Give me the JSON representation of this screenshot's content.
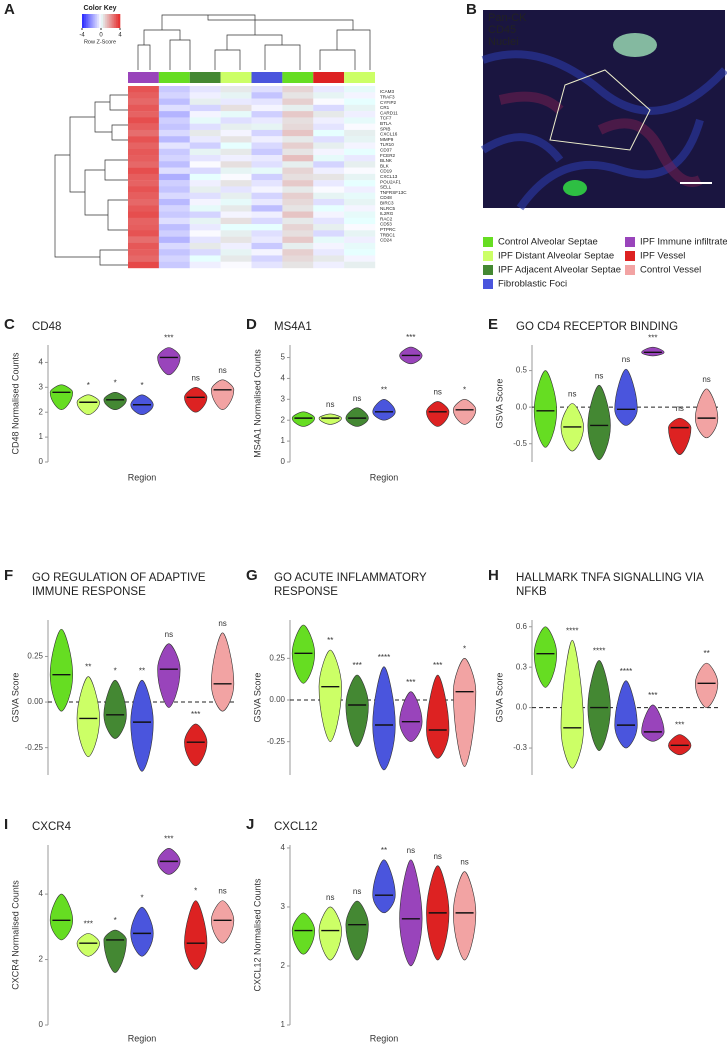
{
  "groups": {
    "names": [
      "Control Alveolar Septae",
      "IPF Distant Alveolar Septae",
      "IPF Adjacent Alveolar Septae",
      "Fibroblastic Foci",
      "IPF Immune infiltrate",
      "IPF Vessel",
      "Control Vessel"
    ],
    "colors": [
      "#66dd22",
      "#ccff66",
      "#448833",
      "#4a55dd",
      "#9944bb",
      "#dd2222",
      "#f2a3a3"
    ]
  },
  "micrograph": {
    "panel_label": "B",
    "channels": [
      "Pan-CK",
      "CD45",
      "Nuclei"
    ],
    "channel_colors": [
      "#a8f0c0",
      "#ff3030",
      "#5566ff"
    ]
  },
  "chart_data": [
    {
      "type": "heatmap",
      "panel_label": "A",
      "color_key": {
        "title": "Color Key",
        "label": "Row Z-Score",
        "lim": [
          -4,
          4
        ],
        "ticks": [
          -4,
          0,
          4
        ]
      },
      "rows": [
        "ICAM3",
        "TRAF3",
        "CYFIP2",
        "CR1",
        "CARD11",
        "TCF7",
        "BTLA",
        "SPIB",
        "CXCL16",
        "MMP9",
        "TLR10",
        "CD37",
        "FCER2",
        "BLNK",
        "BLK",
        "CD19",
        "CXCL13",
        "POU2AF1",
        "SELL",
        "TNFRSF13C",
        "CD48",
        "BIRC3",
        "NLRC5",
        "IL2RG",
        "RAC2",
        "CD53",
        "PTPRC",
        "TRBC1",
        "CD24"
      ],
      "column_groups": [
        4,
        0,
        2,
        1,
        3,
        0,
        5,
        1
      ],
      "values": [
        [
          3.2,
          -1.0,
          -0.5,
          0.4,
          -0.6,
          0.8,
          -0.4,
          0.1
        ],
        [
          3.0,
          -0.8,
          -0.3,
          0.2,
          -1.1,
          0.5,
          0.2,
          -0.2
        ],
        [
          2.8,
          -1.2,
          0.3,
          -0.4,
          -0.5,
          0.9,
          -0.1,
          0.0
        ],
        [
          3.1,
          -0.6,
          -0.8,
          0.6,
          -0.2,
          0.3,
          -0.7,
          0.2
        ],
        [
          2.9,
          -1.4,
          -0.2,
          0.1,
          -0.9,
          1.0,
          0.4,
          -0.3
        ],
        [
          3.3,
          -0.9,
          0.1,
          -0.6,
          -0.4,
          0.6,
          -0.3,
          0.1
        ],
        [
          3.0,
          -1.1,
          -0.6,
          0.3,
          0.2,
          0.7,
          -0.5,
          -0.1
        ],
        [
          2.7,
          -0.7,
          0.4,
          -0.2,
          -0.8,
          1.1,
          0.0,
          0.3
        ],
        [
          3.2,
          -1.3,
          -0.4,
          0.5,
          -0.3,
          0.4,
          -0.6,
          0.2
        ],
        [
          2.9,
          -0.5,
          -0.9,
          0.0,
          -0.7,
          0.9,
          0.3,
          -0.2
        ],
        [
          3.1,
          -1.0,
          0.2,
          0.4,
          -1.0,
          0.5,
          -0.2,
          0.0
        ],
        [
          3.0,
          -0.8,
          -0.5,
          -0.3,
          -0.4,
          1.2,
          0.1,
          -0.4
        ],
        [
          2.8,
          -1.2,
          -0.1,
          0.6,
          -0.6,
          0.3,
          -0.8,
          0.3
        ],
        [
          3.3,
          -0.6,
          -0.7,
          0.2,
          0.1,
          0.8,
          -0.3,
          -0.1
        ],
        [
          3.0,
          -1.5,
          0.0,
          -0.1,
          -0.9,
          0.6,
          0.5,
          0.2
        ],
        [
          2.9,
          -0.9,
          -0.3,
          0.5,
          -0.5,
          1.0,
          -0.4,
          0.0
        ],
        [
          3.2,
          -1.1,
          0.3,
          -0.5,
          -0.2,
          0.4,
          -0.1,
          -0.3
        ],
        [
          3.0,
          -0.7,
          -0.6,
          0.3,
          -0.8,
          0.9,
          0.2,
          0.1
        ],
        [
          2.8,
          -1.3,
          -0.2,
          0.1,
          -0.4,
          0.7,
          -0.6,
          0.2
        ],
        [
          3.1,
          -0.8,
          0.1,
          0.4,
          -1.2,
          0.5,
          0.0,
          -0.2
        ],
        [
          3.3,
          -1.0,
          -0.8,
          -0.2,
          -0.3,
          1.1,
          -0.2,
          0.1
        ],
        [
          2.9,
          -0.6,
          0.2,
          0.6,
          -0.7,
          0.4,
          -0.5,
          0.0
        ],
        [
          3.0,
          -1.2,
          -0.4,
          0.0,
          0.0,
          0.8,
          0.3,
          -0.1
        ],
        [
          3.2,
          -0.9,
          -0.1,
          0.3,
          -0.6,
          0.6,
          -0.7,
          0.2
        ],
        [
          2.7,
          -1.4,
          -0.5,
          0.5,
          -0.4,
          1.0,
          0.1,
          -0.3
        ],
        [
          3.1,
          -0.7,
          0.4,
          -0.3,
          -1.0,
          0.3,
          -0.2,
          0.1
        ],
        [
          3.0,
          -1.1,
          -0.7,
          0.2,
          -0.2,
          0.9,
          -0.4,
          0.0
        ],
        [
          2.8,
          -0.8,
          0.0,
          0.4,
          -0.8,
          0.7,
          0.4,
          -0.2
        ],
        [
          3.4,
          -1.0,
          -0.3,
          -0.1,
          -0.5,
          0.5,
          -0.3,
          0.3
        ]
      ]
    },
    {
      "type": "violin",
      "panel_label": "C",
      "title": [
        "CD48"
      ],
      "ylabel": "CD48 Normalised Counts",
      "xlabel": "Region",
      "ylim": [
        0,
        4.7
      ],
      "yticks": [
        0,
        1,
        2,
        3,
        4
      ],
      "median": [
        2.8,
        2.4,
        2.5,
        2.3,
        4.2,
        2.6,
        2.9
      ],
      "min": [
        2.1,
        1.9,
        2.1,
        1.9,
        3.5,
        2.0,
        2.1
      ],
      "max": [
        3.1,
        2.7,
        2.8,
        2.7,
        4.6,
        3.0,
        3.3
      ],
      "sig_labels": [
        null,
        "*",
        "*",
        "*",
        "***",
        "ns",
        "ns"
      ]
    },
    {
      "type": "violin",
      "panel_label": "D",
      "title": [
        "MS4A1"
      ],
      "ylabel": "MS4A1 Normalised Counts",
      "xlabel": "Region",
      "ylim": [
        0,
        5.6
      ],
      "yticks": [
        0,
        1,
        2,
        3,
        4,
        5
      ],
      "median": [
        2.1,
        2.1,
        2.1,
        2.4,
        5.1,
        2.4,
        2.5
      ],
      "min": [
        1.7,
        1.8,
        1.7,
        2.0,
        4.7,
        1.7,
        1.8
      ],
      "max": [
        2.4,
        2.3,
        2.6,
        3.0,
        5.5,
        2.9,
        3.0
      ],
      "sig_labels": [
        null,
        "ns",
        "ns",
        "**",
        "***",
        "ns",
        "*"
      ]
    },
    {
      "type": "violin",
      "panel_label": "E",
      "title": [
        "GO CD4 RECEPTOR BINDING"
      ],
      "ylabel": "GSVA Score",
      "ylim": [
        -0.75,
        0.85
      ],
      "yticks": [
        -0.5,
        {
          "value": 0,
          "label": "0.0"
        },
        0.5
      ],
      "hline": 0,
      "median": [
        -0.05,
        -0.27,
        -0.25,
        -0.03,
        0.75,
        -0.28,
        -0.15
      ],
      "min": [
        -0.55,
        -0.6,
        -0.72,
        -0.25,
        0.7,
        -0.65,
        -0.42
      ],
      "max": [
        0.5,
        0.05,
        0.3,
        0.52,
        0.82,
        -0.15,
        0.25
      ],
      "sig_labels": [
        null,
        "ns",
        "ns",
        "ns",
        "***",
        "ns",
        "ns"
      ]
    },
    {
      "type": "violin",
      "panel_label": "F",
      "title": [
        "GO REGULATION OF ADAPTIVE",
        "IMMUNE RESPONSE"
      ],
      "ylabel": "GSVA Score",
      "ylim": [
        -0.4,
        0.45
      ],
      "yticks": [
        -0.25,
        {
          "value": 0,
          "label": "0.00"
        },
        0.25
      ],
      "hline": 0,
      "median": [
        0.15,
        -0.09,
        -0.07,
        -0.11,
        0.18,
        -0.22,
        0.1
      ],
      "min": [
        -0.05,
        -0.3,
        -0.2,
        -0.38,
        -0.03,
        -0.35,
        -0.05
      ],
      "max": [
        0.4,
        0.14,
        0.12,
        0.12,
        0.32,
        -0.12,
        0.38
      ],
      "sig_labels": [
        null,
        "**",
        "*",
        "**",
        "ns",
        "***",
        "ns"
      ]
    },
    {
      "type": "violin",
      "panel_label": "G",
      "title": [
        "GO ACUTE INFLAMMATORY",
        "RESPONSE"
      ],
      "ylabel": "GSVA Score",
      "ylim": [
        -0.45,
        0.48
      ],
      "yticks": [
        -0.25,
        {
          "value": 0,
          "label": "0.00"
        },
        0.25
      ],
      "hline": 0,
      "median": [
        0.28,
        0.08,
        -0.03,
        -0.15,
        -0.13,
        -0.18,
        0.05
      ],
      "min": [
        0.1,
        -0.25,
        -0.28,
        -0.42,
        -0.25,
        -0.35,
        -0.4
      ],
      "max": [
        0.45,
        0.3,
        0.15,
        0.2,
        0.05,
        0.15,
        0.25
      ],
      "sig_labels": [
        null,
        "**",
        "***",
        "****",
        "***",
        "***",
        "*"
      ]
    },
    {
      "type": "violin",
      "panel_label": "H",
      "title": [
        "HALLMARK TNFA SIGNALLING VIA",
        "NFKB"
      ],
      "ylabel": "GSVA Score",
      "ylim": [
        -0.5,
        0.65
      ],
      "yticks": [
        -0.3,
        {
          "value": 0,
          "label": "0.0"
        },
        0.3,
        0.6
      ],
      "hline": 0,
      "median": [
        0.4,
        -0.15,
        0.0,
        -0.13,
        -0.18,
        -0.28,
        0.18
      ],
      "min": [
        0.15,
        -0.45,
        -0.32,
        -0.3,
        -0.25,
        -0.35,
        0.0
      ],
      "max": [
        0.6,
        0.5,
        0.35,
        0.2,
        0.02,
        -0.2,
        0.33
      ],
      "sig_labels": [
        null,
        "****",
        "****",
        "****",
        "***",
        "***",
        "**"
      ]
    },
    {
      "type": "violin",
      "panel_label": "I",
      "title": [
        "CXCR4"
      ],
      "ylabel": "CXCR4 Normalised Counts",
      "xlabel": "Region",
      "ylim": [
        0,
        5.5
      ],
      "yticks": [
        0,
        2,
        4
      ],
      "median": [
        3.2,
        2.5,
        2.6,
        2.8,
        5.0,
        2.5,
        3.2
      ],
      "min": [
        2.6,
        2.1,
        1.6,
        2.1,
        4.6,
        1.7,
        2.5
      ],
      "max": [
        4.0,
        2.8,
        2.9,
        3.6,
        5.4,
        3.8,
        3.8
      ],
      "sig_labels": [
        null,
        "***",
        "*",
        "*",
        "***",
        "*",
        "ns"
      ]
    },
    {
      "type": "violin",
      "panel_label": "J",
      "title": [
        "CXCL12"
      ],
      "ylabel": "CXCL12 Normalised Counts",
      "xlabel": "Region",
      "ylim": [
        1,
        4.05
      ],
      "yticks": [
        1,
        2,
        3,
        4
      ],
      "median": [
        2.6,
        2.6,
        2.7,
        3.2,
        2.8,
        2.9,
        2.9
      ],
      "min": [
        2.2,
        2.1,
        2.1,
        2.9,
        2.0,
        2.1,
        2.1
      ],
      "max": [
        2.9,
        3.0,
        3.1,
        3.8,
        3.8,
        3.7,
        3.6
      ],
      "sig_labels": [
        null,
        "ns",
        "ns",
        "**",
        "ns",
        "ns",
        "ns"
      ]
    }
  ]
}
